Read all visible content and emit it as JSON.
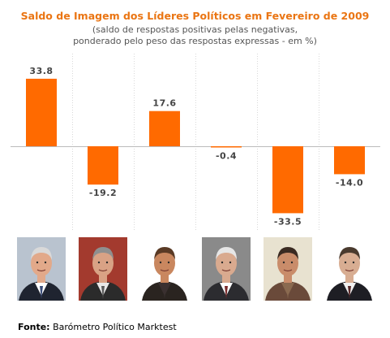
{
  "colors": {
    "accent": "#ea7513",
    "bar": "#ff6a00",
    "axis": "#bbbbbb",
    "grid": "#d8d8d8",
    "label": "#444444"
  },
  "chart_data": {
    "type": "bar",
    "title": "Saldo de Imagem dos Líderes Políticos em Fevereiro de 2009",
    "subtitle_line1": "(saldo de respostas positivas pelas negativas,",
    "subtitle_line2": "ponderado pelo peso das respostas expressas - em %)",
    "categories": [
      "",
      "",
      "",
      "",
      "",
      ""
    ],
    "values": [
      33.8,
      -19.2,
      17.6,
      -0.4,
      -33.5,
      -14.0
    ],
    "value_labels": [
      "33.8",
      "-19.2",
      "17.6",
      "-0.4",
      "-33.5",
      "-14.0"
    ],
    "ylim": [
      -36,
      40
    ],
    "grid": true,
    "legend": "none"
  },
  "photos": [
    {
      "icon": "leader-1-photo"
    },
    {
      "icon": "leader-2-photo"
    },
    {
      "icon": "leader-3-photo"
    },
    {
      "icon": "leader-4-photo"
    },
    {
      "icon": "leader-5-photo"
    },
    {
      "icon": "leader-6-photo"
    }
  ],
  "footer": {
    "label": "Fonte:",
    "source": " Barómetro Político Marktest"
  }
}
